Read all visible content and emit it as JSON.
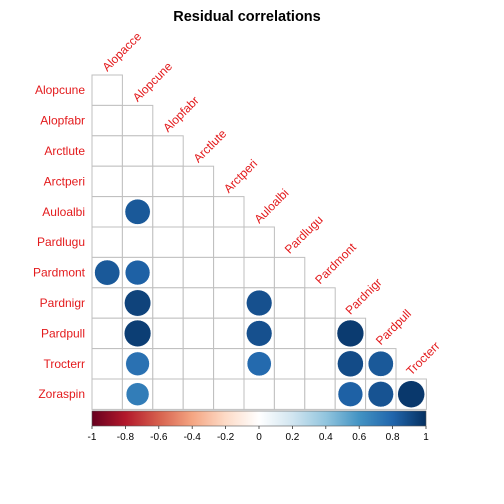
{
  "chart_data": {
    "type": "heatmap",
    "title": "Residual correlations",
    "row_labels": [
      "Alopcune",
      "Alopfabr",
      "Arctlute",
      "Arctperi",
      "Auloalbi",
      "Pardlugu",
      "Pardmont",
      "Pardnigr",
      "Pardpull",
      "Trocterr",
      "Zoraspin"
    ],
    "col_labels": [
      "Alopacce",
      "Alopcune",
      "Alopfabr",
      "Arctlute",
      "Arctperi",
      "Auloalbi",
      "Pardlugu",
      "Pardmont",
      "Pardnigr",
      "Pardpull",
      "Trocterr"
    ],
    "layout": "lower-triangular",
    "correlations": [
      {
        "row": "Auloalbi",
        "col": "Alopcune",
        "value": 0.85
      },
      {
        "row": "Pardmont",
        "col": "Alopacce",
        "value": 0.85
      },
      {
        "row": "Pardmont",
        "col": "Alopcune",
        "value": 0.82
      },
      {
        "row": "Pardnigr",
        "col": "Alopcune",
        "value": 0.93
      },
      {
        "row": "Pardnigr",
        "col": "Auloalbi",
        "value": 0.88
      },
      {
        "row": "Pardpull",
        "col": "Alopcune",
        "value": 0.95
      },
      {
        "row": "Pardpull",
        "col": "Auloalbi",
        "value": 0.88
      },
      {
        "row": "Pardpull",
        "col": "Pardnigr",
        "value": 0.96
      },
      {
        "row": "Trocterr",
        "col": "Alopcune",
        "value": 0.75
      },
      {
        "row": "Trocterr",
        "col": "Auloalbi",
        "value": 0.78
      },
      {
        "row": "Trocterr",
        "col": "Pardnigr",
        "value": 0.9
      },
      {
        "row": "Trocterr",
        "col": "Pardpull",
        "value": 0.85
      },
      {
        "row": "Zoraspin",
        "col": "Alopcune",
        "value": 0.7
      },
      {
        "row": "Zoraspin",
        "col": "Pardnigr",
        "value": 0.82
      },
      {
        "row": "Zoraspin",
        "col": "Pardpull",
        "value": 0.87
      },
      {
        "row": "Zoraspin",
        "col": "Trocterr",
        "value": 0.97
      }
    ],
    "colorbar": {
      "range": [
        -1,
        1
      ],
      "ticks": [
        "-1",
        "-0.8",
        "-0.6",
        "-0.4",
        "-0.2",
        "0",
        "0.2",
        "0.4",
        "0.6",
        "0.8",
        "1"
      ],
      "colors": [
        "#67001f",
        "#b2182b",
        "#d6604d",
        "#f4a582",
        "#fddbc7",
        "#ffffff",
        "#d1e5f0",
        "#92c5de",
        "#4393c3",
        "#2166ac",
        "#053061"
      ]
    },
    "label_color": "#e31a1c",
    "grid_color": "#bfbfbf"
  }
}
